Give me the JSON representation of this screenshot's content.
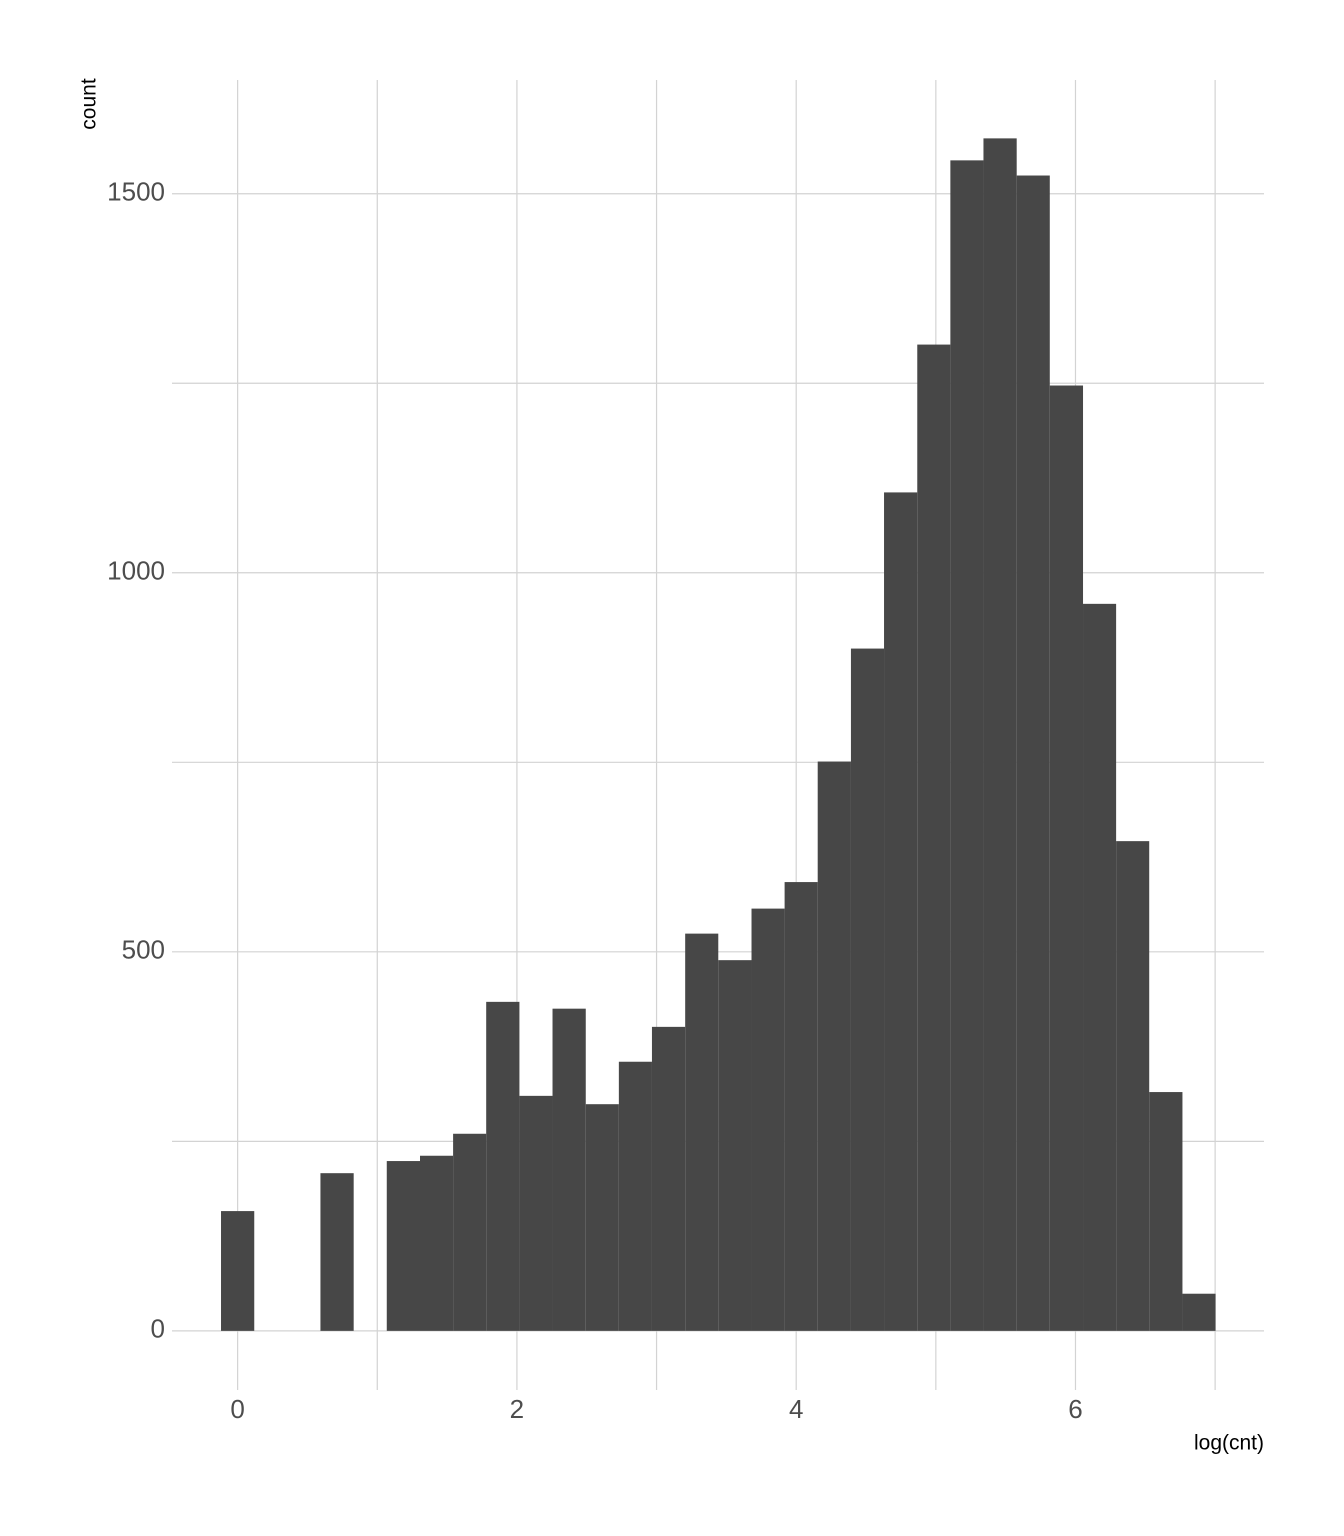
{
  "chart_data": {
    "type": "histogram",
    "x_label": "log(cnt)",
    "y_label": "count",
    "bins": [
      -0.119,
      0.119,
      0.356,
      0.593,
      0.831,
      1.068,
      1.306,
      1.543,
      1.78,
      2.018,
      2.255,
      2.493,
      2.73,
      2.967,
      3.205,
      3.442,
      3.68,
      3.917,
      4.154,
      4.392,
      4.629,
      4.867,
      5.104,
      5.341,
      5.579,
      5.816,
      6.054,
      6.291,
      6.528,
      6.766,
      7.003
    ],
    "counts": [
      158,
      0,
      0,
      208,
      0,
      224,
      231,
      260,
      434,
      310,
      425,
      299,
      355,
      401,
      524,
      489,
      557,
      592,
      751,
      900,
      1106,
      1301,
      1544,
      1573,
      1524,
      1247,
      959,
      646,
      315,
      49
    ],
    "color": "#474747",
    "xlim": [
      -0.47,
      7.35
    ],
    "ylim": [
      -78,
      1650
    ],
    "xticks": [
      0,
      2,
      4,
      6
    ],
    "yticks": [
      0,
      500,
      1000,
      1500
    ],
    "x_minor_ticks": [
      1,
      3,
      5,
      7
    ],
    "y_minor_ticks": [
      250,
      750,
      1250
    ],
    "grid": true
  }
}
